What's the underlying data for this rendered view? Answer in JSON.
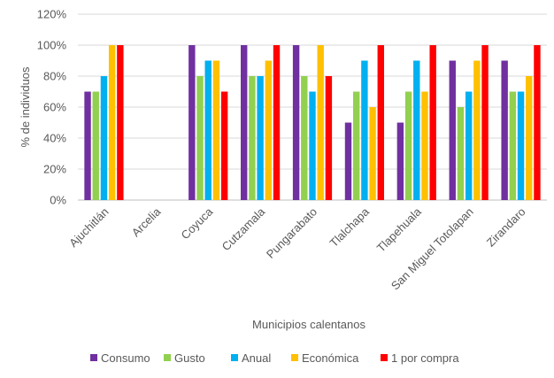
{
  "chart_data": {
    "type": "bar",
    "categories": [
      "Ajuchitlán",
      "Arcelia",
      "Coyuca",
      "Cutzamala",
      "Pungarabato",
      "Tlalchapa",
      "Tlapehuala",
      "San Miguel Totolapan",
      "Zirandaro"
    ],
    "series": [
      {
        "name": "Consumo",
        "color": "#7030A0",
        "values": [
          70,
          0,
          100,
          100,
          100,
          50,
          50,
          90,
          90
        ]
      },
      {
        "name": "Gusto",
        "color": "#92D050",
        "values": [
          70,
          0,
          80,
          80,
          80,
          70,
          70,
          60,
          70
        ]
      },
      {
        "name": "Anual",
        "color": "#00B0F0",
        "values": [
          80,
          0,
          90,
          80,
          70,
          90,
          90,
          70,
          70
        ]
      },
      {
        "name": "Económica",
        "color": "#FFC000",
        "values": [
          100,
          0,
          90,
          90,
          100,
          60,
          70,
          90,
          80
        ]
      },
      {
        "name": "1 por compra",
        "color": "#FF0000",
        "values": [
          100,
          0,
          70,
          100,
          80,
          100,
          100,
          100,
          100
        ]
      }
    ],
    "title": "",
    "xlabel": "Municipios calentanos",
    "ylabel": "% de individuos",
    "ylim": [
      0,
      120
    ],
    "yticks": [
      "0%",
      "20%",
      "40%",
      "60%",
      "80%",
      "100%",
      "120%"
    ],
    "grid": true,
    "legend_position": "bottom"
  }
}
